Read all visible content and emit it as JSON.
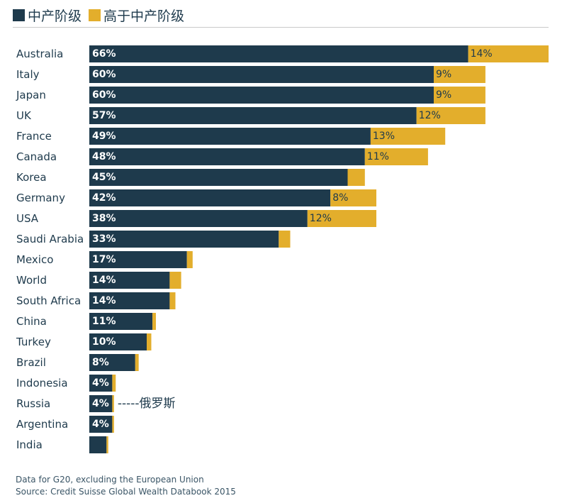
{
  "chart_data": {
    "type": "bar",
    "orientation": "horizontal",
    "stacked": true,
    "legend": {
      "position": "top-left",
      "entries": [
        {
          "name": "中产阶级",
          "color": "#1e3a4c"
        },
        {
          "name": "高于中产阶级",
          "color": "#e3ae2c"
        }
      ]
    },
    "categories": [
      "Australia",
      "Italy",
      "Japan",
      "UK",
      "France",
      "Canada",
      "Korea",
      "Germany",
      "USA",
      "Saudi Arabia",
      "Mexico",
      "World",
      "South Africa",
      "China",
      "Turkey",
      "Brazil",
      "Indonesia",
      "Russia",
      "Argentina",
      "India"
    ],
    "series": [
      {
        "name": "中产阶级",
        "color": "#1e3a4c",
        "values": [
          66,
          60,
          60,
          57,
          49,
          48,
          45,
          42,
          38,
          33,
          17,
          14,
          14,
          11,
          10,
          8,
          4,
          4,
          4,
          3
        ],
        "labels": [
          "66%",
          "60%",
          "60%",
          "57%",
          "49%",
          "48%",
          "45%",
          "42%",
          "38%",
          "33%",
          "17%",
          "14%",
          "14%",
          "11%",
          "10%",
          "8%",
          "4%",
          "4%",
          "4%",
          ""
        ]
      },
      {
        "name": "高于中产阶级",
        "color": "#e3ae2c",
        "values": [
          14,
          9,
          9,
          12,
          13,
          11,
          3,
          8,
          12,
          2,
          1,
          2,
          1,
          0.6,
          0.8,
          0.6,
          0.6,
          0.3,
          0.3,
          0.3
        ],
        "labels": [
          "14%",
          "9%",
          "9%",
          "12%",
          "13%",
          "11%",
          "",
          "8%",
          "12%",
          "",
          "",
          "",
          "",
          "",
          "",
          "",
          "",
          "",
          "",
          ""
        ]
      }
    ],
    "xlim": [
      0,
      80
    ],
    "grid": false,
    "annotations": [
      {
        "category": "Russia",
        "text": "-----俄罗斯"
      }
    ],
    "notes": [
      "Data for G20, excluding the European Union",
      "Source: Credit Suisse Global Wealth Databook 2015"
    ]
  }
}
